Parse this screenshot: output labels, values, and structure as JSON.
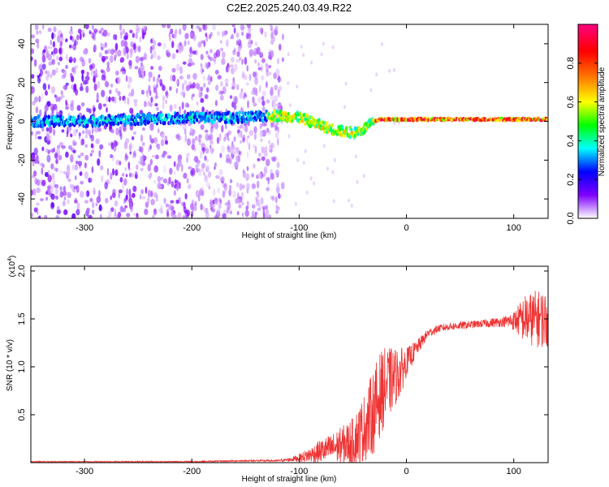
{
  "title": "C2E2.2025.240.03.49.R22",
  "chart_data": [
    {
      "type": "heatmap",
      "title": "C2E2.2025.240.03.49.R22",
      "xlabel": "Height of straight line (km)",
      "ylabel": "Frequency (Hz)",
      "xlim": [
        -350,
        132
      ],
      "ylim": [
        -50,
        50
      ],
      "x_ticks": [
        -300,
        -200,
        -100,
        0,
        100
      ],
      "x_tick_labels": [
        "-300",
        "-200",
        "-100",
        "0",
        "100"
      ],
      "y_ticks": [
        -40,
        -20,
        0,
        20,
        40
      ],
      "y_tick_labels": [
        "-40",
        "-20",
        "0",
        "20",
        "40"
      ],
      "ridge_line": {
        "x": [
          -350,
          -300,
          -250,
          -200,
          -150,
          -120,
          -100,
          -90,
          -80,
          -70,
          -60,
          -50,
          -45,
          -40,
          -35,
          -30,
          -25,
          -20,
          -10,
          0,
          50,
          100,
          132
        ],
        "y": [
          0,
          0,
          1,
          2,
          2,
          3,
          2,
          0,
          -2,
          -4,
          -5,
          -6,
          -5,
          -4,
          -2,
          0,
          1,
          1,
          1,
          1,
          1,
          1,
          1
        ]
      },
      "noise_cutoff_x": -115,
      "colorbar": {
        "label": "Normalized spectral amplitude",
        "range": [
          0,
          1
        ],
        "ticks": [
          0.0,
          0.2,
          0.4,
          0.6,
          0.8
        ],
        "tick_labels": [
          "0.0",
          "0.2",
          "0.4",
          "0.6",
          "0.8"
        ],
        "colors": [
          "#ffffff",
          "#7f00ff",
          "#0000ff",
          "#00ffff",
          "#00ff00",
          "#ffff00",
          "#ff8000",
          "#ff0000",
          "#ff0080"
        ]
      }
    },
    {
      "type": "line",
      "xlabel": "Height of straight line (km)",
      "ylabel": "SNR (10 * v/v)",
      "y_multiplier": "(x10",
      "y_multiplier_exp": "4",
      "y_multiplier_close": ")",
      "xlim": [
        -350,
        132
      ],
      "ylim": [
        0,
        2.05
      ],
      "x_ticks": [
        -300,
        -200,
        -100,
        0,
        100
      ],
      "x_tick_labels": [
        "-300",
        "-200",
        "-100",
        "0",
        "100"
      ],
      "y_ticks": [
        0.5,
        1.0,
        1.5,
        2.0
      ],
      "y_tick_labels": [
        "0.5",
        "1.0",
        "1.5",
        "2.0"
      ],
      "line_color": "#ee3333",
      "series": [
        {
          "name": "SNR",
          "x": [
            -350,
            -300,
            -250,
            -200,
            -150,
            -120,
            -110,
            -100,
            -90,
            -80,
            -70,
            -60,
            -50,
            -40,
            -35,
            -30,
            -25,
            -20,
            -15,
            -10,
            -5,
            0,
            10,
            20,
            30,
            40,
            50,
            60,
            70,
            80,
            90,
            100,
            110,
            120,
            132
          ],
          "y": [
            0.01,
            0.01,
            0.01,
            0.01,
            0.02,
            0.02,
            0.03,
            0.05,
            0.08,
            0.12,
            0.15,
            0.18,
            0.22,
            0.35,
            0.45,
            0.55,
            0.7,
            0.8,
            0.85,
            0.9,
            0.95,
            1.05,
            1.2,
            1.35,
            1.4,
            1.42,
            1.43,
            1.44,
            1.45,
            1.46,
            1.47,
            1.48,
            1.5,
            1.5,
            1.5
          ],
          "noise_amplitude": [
            0.005,
            0.005,
            0.006,
            0.006,
            0.008,
            0.01,
            0.02,
            0.04,
            0.08,
            0.12,
            0.15,
            0.2,
            0.25,
            0.35,
            0.4,
            0.45,
            0.45,
            0.4,
            0.35,
            0.3,
            0.25,
            0.15,
            0.08,
            0.05,
            0.04,
            0.04,
            0.04,
            0.04,
            0.04,
            0.05,
            0.05,
            0.1,
            0.25,
            0.3,
            0.3
          ]
        }
      ]
    }
  ]
}
